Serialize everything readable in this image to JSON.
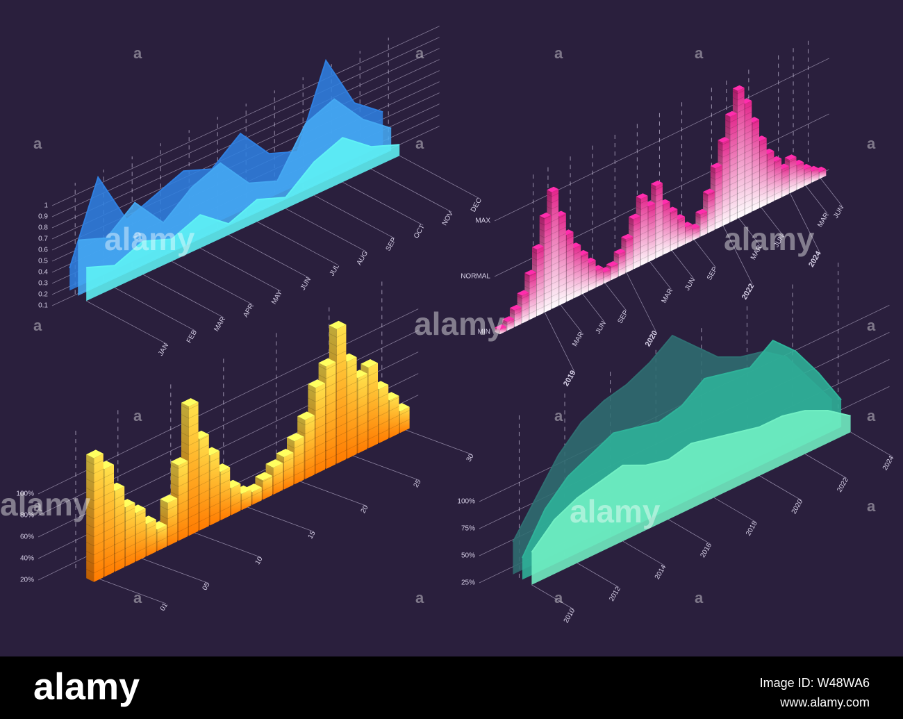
{
  "chart_data": [
    {
      "type": "area",
      "categories": [
        "JAN",
        "FEB",
        "MAR",
        "APR",
        "MAY",
        "JUN",
        "JUL",
        "AUG",
        "SEP",
        "OCT",
        "NOV",
        "DEC"
      ],
      "series": [
        {
          "color": "#2f7fe0",
          "values": [
            0.2,
            0.9,
            0.4,
            0.5,
            0.6,
            0.5,
            0.7,
            0.4,
            0.3,
            1.0,
            0.5,
            0.3
          ]
        },
        {
          "color": "#45a8f2",
          "values": [
            0.5,
            0.4,
            0.6,
            0.3,
            0.5,
            0.6,
            0.3,
            0.2,
            0.6,
            0.7,
            0.4,
            0.2
          ]
        },
        {
          "color": "#5ff2f5",
          "values": [
            0.3,
            0.2,
            0.3,
            0.2,
            0.3,
            0.1,
            0.2,
            0.1,
            0.3,
            0.4,
            0.2,
            0.1
          ]
        }
      ],
      "ylim": [
        0,
        1
      ],
      "yticks": [
        0.1,
        0.2,
        0.3,
        0.4,
        0.5,
        0.6,
        0.7,
        0.8,
        0.9,
        1.0
      ],
      "grid": true
    },
    {
      "type": "bar",
      "categories": [
        null,
        null,
        null,
        null,
        null,
        null,
        "2019",
        null,
        "MAR",
        null,
        null,
        "JUN",
        null,
        null,
        "SEP",
        null,
        null,
        "2020",
        null,
        null,
        "MAR",
        null,
        null,
        "JUN",
        null,
        null,
        "SEP",
        null,
        null,
        null,
        "2022",
        null,
        "MAR",
        null,
        null,
        "JUN",
        null,
        null,
        null,
        "2024",
        null,
        "MAR",
        null,
        "JUN"
      ],
      "values": [
        4,
        8,
        15,
        25,
        40,
        60,
        85,
        105,
        80,
        60,
        45,
        35,
        25,
        15,
        10,
        12,
        20,
        30,
        45,
        60,
        50,
        65,
        45,
        35,
        25,
        15,
        10,
        20,
        35,
        55,
        75,
        95,
        115,
        100,
        80,
        60,
        45,
        35,
        25,
        30,
        22,
        15,
        10,
        6
      ],
      "colors": [
        "#ffffff",
        "#e2248a"
      ],
      "ylim": [
        0,
        120
      ],
      "yticks": [
        {
          "value": 0,
          "label": "MIN"
        },
        {
          "value": 50,
          "label": "NORMAL"
        },
        {
          "value": 100,
          "label": "MAX"
        }
      ],
      "grid": true
    },
    {
      "type": "bar",
      "x": [
        1,
        2,
        3,
        4,
        5,
        6,
        7,
        8,
        9,
        10,
        11,
        12,
        13,
        14,
        15,
        16,
        17,
        18,
        19,
        20,
        21,
        22,
        23,
        24,
        25,
        26,
        27,
        28,
        29,
        30
      ],
      "values": [
        115,
        100,
        75,
        55,
        45,
        30,
        20,
        40,
        70,
        120,
        85,
        65,
        45,
        25,
        15,
        12,
        18,
        25,
        30,
        40,
        55,
        80,
        95,
        125,
        90,
        70,
        75,
        50,
        35,
        20
      ],
      "colors": [
        "#ff7a00",
        "#ffe34d"
      ],
      "xticks": [
        {
          "value": 1,
          "label": "01"
        },
        {
          "value": 5,
          "label": "05"
        },
        10,
        15,
        20,
        25,
        30
      ],
      "ylim": [
        0,
        130
      ],
      "yticks": [
        {
          "value": 20,
          "label": "20%"
        },
        {
          "value": 40,
          "label": "40%"
        },
        {
          "value": 60,
          "label": "60%"
        },
        {
          "value": 80,
          "label": "80%"
        },
        {
          "value": 100,
          "label": "100%"
        }
      ],
      "grid": true
    },
    {
      "type": "area",
      "x": [
        2010,
        2011,
        2012,
        2013,
        2014,
        2015,
        2016,
        2017,
        2018,
        2019,
        2020,
        2021,
        2022,
        2023,
        2024
      ],
      "series": [
        {
          "color": "#2f6e72",
          "values": [
            30,
            60,
            90,
            110,
            120,
            125,
            135,
            150,
            130,
            110,
            100,
            95,
            80,
            50,
            20
          ]
        },
        {
          "color": "#2fb39a",
          "values": [
            20,
            55,
            75,
            85,
            95,
            90,
            85,
            90,
            105,
            100,
            95,
            110,
            90,
            60,
            25
          ]
        },
        {
          "color": "#72f0c4",
          "values": [
            30,
            50,
            60,
            65,
            70,
            60,
            55,
            60,
            55,
            50,
            45,
            45,
            40,
            30,
            15
          ]
        }
      ],
      "xticks": [
        2010,
        2012,
        2014,
        2016,
        2018,
        2020,
        2022,
        2024
      ],
      "ylim": [
        0,
        150
      ],
      "yticks": [
        {
          "value": 25,
          "label": "25%"
        },
        {
          "value": 50,
          "label": "50%"
        },
        {
          "value": 75,
          "label": "75%"
        },
        {
          "value": 100,
          "label": "100%"
        }
      ],
      "grid": true
    }
  ],
  "watermark": "alamy",
  "watermark_mark": "a",
  "footer": {
    "brand": "alamy",
    "image_id": "Image ID: W48WA6",
    "url": "www.alamy.com"
  }
}
